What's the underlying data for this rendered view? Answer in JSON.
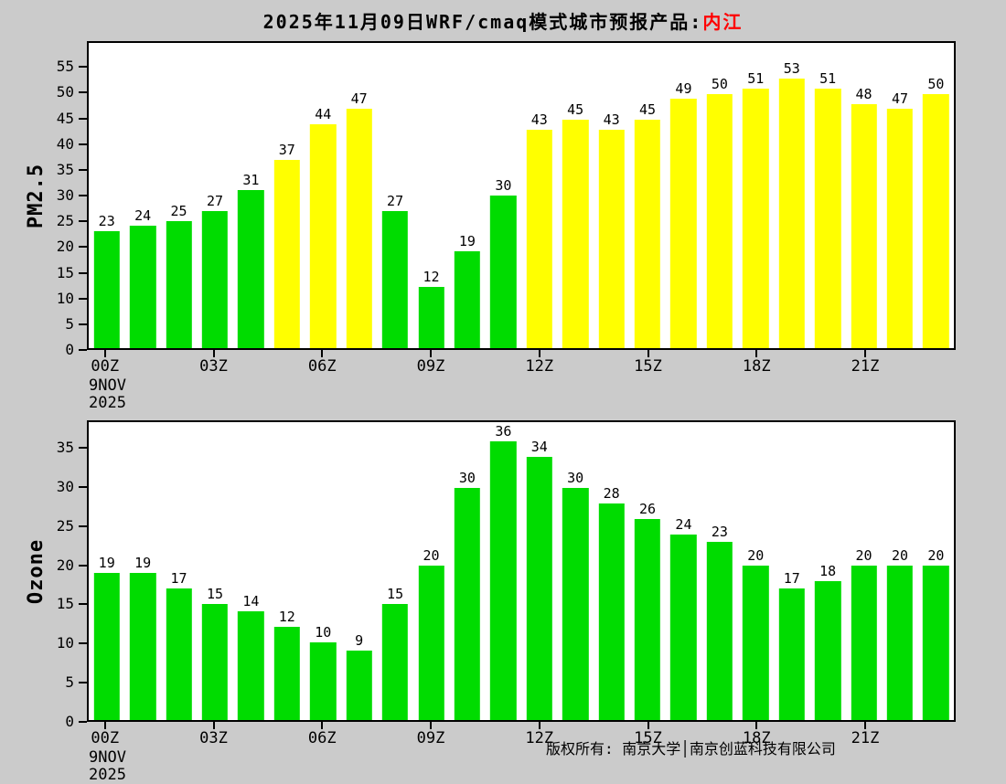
{
  "title": {
    "prefix": "2025年11月09日WRF/cmaq模式城市预报产品:",
    "city": "内江"
  },
  "footer": "版权所有: 南京大学│南京创蓝科技有限公司",
  "colors": {
    "green": "#00dc00",
    "yellow": "#ffff00",
    "background": "#cbcbcb",
    "title_city": "#ff0000"
  },
  "x_axis": {
    "tick_labels": [
      "00Z",
      "03Z",
      "06Z",
      "09Z",
      "12Z",
      "15Z",
      "18Z",
      "21Z"
    ],
    "date_line1": "9NOV",
    "date_line2": "2025"
  },
  "chart_data": [
    {
      "type": "bar",
      "title": "",
      "ylabel": "PM2.5",
      "xlabel": "",
      "categories": [
        "00Z",
        "01Z",
        "02Z",
        "03Z",
        "04Z",
        "05Z",
        "06Z",
        "07Z",
        "08Z",
        "09Z",
        "10Z",
        "11Z",
        "12Z",
        "13Z",
        "14Z",
        "15Z",
        "16Z",
        "17Z",
        "18Z",
        "19Z",
        "20Z",
        "21Z",
        "22Z",
        "23Z"
      ],
      "values": [
        23,
        24,
        25,
        27,
        31,
        37,
        44,
        47,
        27,
        12,
        19,
        30,
        43,
        45,
        43,
        45,
        49,
        50,
        51,
        53,
        51,
        48,
        47,
        50
      ],
      "bar_colors": [
        "green",
        "green",
        "green",
        "green",
        "green",
        "yellow",
        "yellow",
        "yellow",
        "green",
        "green",
        "green",
        "green",
        "yellow",
        "yellow",
        "yellow",
        "yellow",
        "yellow",
        "yellow",
        "yellow",
        "yellow",
        "yellow",
        "yellow",
        "yellow",
        "yellow"
      ],
      "yticks": [
        0,
        5,
        10,
        15,
        20,
        25,
        30,
        35,
        40,
        45,
        50,
        55
      ],
      "ylim": [
        0,
        60
      ],
      "grid": false,
      "legend": false
    },
    {
      "type": "bar",
      "title": "",
      "ylabel": "Ozone",
      "xlabel": "",
      "categories": [
        "00Z",
        "01Z",
        "02Z",
        "03Z",
        "04Z",
        "05Z",
        "06Z",
        "07Z",
        "08Z",
        "09Z",
        "10Z",
        "11Z",
        "12Z",
        "13Z",
        "14Z",
        "15Z",
        "16Z",
        "17Z",
        "18Z",
        "19Z",
        "20Z",
        "21Z",
        "22Z",
        "23Z"
      ],
      "values": [
        19,
        19,
        17,
        15,
        14,
        12,
        10,
        9,
        15,
        20,
        30,
        36,
        34,
        30,
        28,
        26,
        24,
        23,
        20,
        17,
        18,
        20,
        20,
        20
      ],
      "bar_colors": [
        "green",
        "green",
        "green",
        "green",
        "green",
        "green",
        "green",
        "green",
        "green",
        "green",
        "green",
        "green",
        "green",
        "green",
        "green",
        "green",
        "green",
        "green",
        "green",
        "green",
        "green",
        "green",
        "green",
        "green"
      ],
      "yticks": [
        0,
        5,
        10,
        15,
        20,
        25,
        30,
        35
      ],
      "ylim": [
        0,
        38.5
      ],
      "grid": false,
      "legend": false
    }
  ]
}
